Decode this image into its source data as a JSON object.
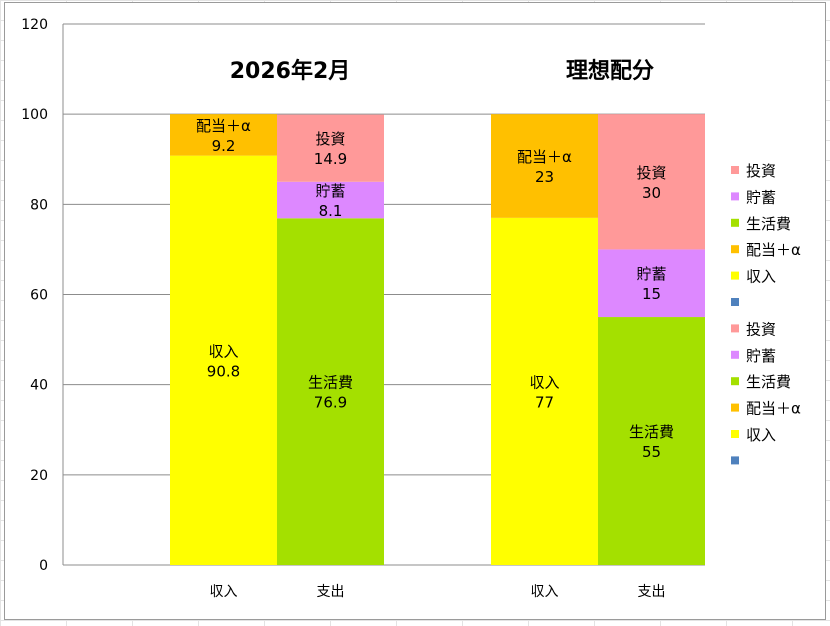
{
  "chart_data": {
    "type": "bar",
    "stacked": true,
    "ylim": [
      0,
      120
    ],
    "yticks": [
      0,
      20,
      40,
      60,
      80,
      100,
      120
    ],
    "grid": true,
    "legend_position": "right",
    "groups": [
      {
        "title": "2026年2月",
        "bars": [
          {
            "category": "収入",
            "segments": [
              {
                "name": "収入",
                "value": 90.8,
                "label": "90.8",
                "color": "#ffff00"
              },
              {
                "name": "配当＋α",
                "value": 9.2,
                "label": "9.2",
                "color": "#ffc000"
              }
            ]
          },
          {
            "category": "支出",
            "segments": [
              {
                "name": "生活費",
                "value": 76.9,
                "label": "76.9",
                "color": "#a4e000"
              },
              {
                "name": "貯蓄",
                "value": 8.1,
                "label": "8.1",
                "color": "#dd88ff"
              },
              {
                "name": "投資",
                "value": 14.9,
                "label": "14.9",
                "color": "#ff9999"
              }
            ]
          }
        ]
      },
      {
        "title": "理想配分",
        "bars": [
          {
            "category": "収入",
            "segments": [
              {
                "name": "収入",
                "value": 77,
                "label": "77",
                "color": "#ffff00"
              },
              {
                "name": "配当＋α",
                "value": 23,
                "label": "23",
                "color": "#ffc000"
              }
            ]
          },
          {
            "category": "支出",
            "segments": [
              {
                "name": "生活費",
                "value": 55,
                "label": "55",
                "color": "#a4e000"
              },
              {
                "name": "貯蓄",
                "value": 15,
                "label": "15",
                "color": "#dd88ff"
              },
              {
                "name": "投資",
                "value": 30,
                "label": "30",
                "color": "#ff9999"
              }
            ]
          }
        ]
      }
    ],
    "legend": [
      {
        "label": "投資",
        "color": "#ff9999"
      },
      {
        "label": "貯蓄",
        "color": "#dd88ff"
      },
      {
        "label": "生活費",
        "color": "#a4e000"
      },
      {
        "label": "配当＋α",
        "color": "#ffc000"
      },
      {
        "label": "収入",
        "color": "#ffff00"
      },
      {
        "label": "",
        "color": "#4f81bd"
      },
      {
        "label": "投資",
        "color": "#ff9999"
      },
      {
        "label": "貯蓄",
        "color": "#dd88ff"
      },
      {
        "label": "生活費",
        "color": "#a4e000"
      },
      {
        "label": "配当＋α",
        "color": "#ffc000"
      },
      {
        "label": "収入",
        "color": "#ffff00"
      },
      {
        "label": "",
        "color": "#4f81bd"
      }
    ]
  }
}
